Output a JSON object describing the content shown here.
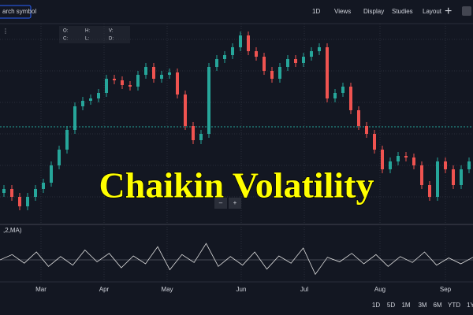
{
  "toolbar": {
    "search": "arch symbol",
    "items": [
      "1D",
      "Views",
      "Display",
      "Studies",
      "Layout"
    ]
  },
  "legend_labels": [
    "O:",
    "H:",
    "V:",
    "C:",
    "L:",
    "D:"
  ],
  "zoom_buttons": [
    "–",
    "+"
  ],
  "ranges": [
    "1D",
    "5D",
    "1M",
    "3M",
    "6M",
    "YTD",
    "1Y"
  ],
  "chart_data": [
    {
      "type": "candlestick",
      "title": "Chaikin Volatility",
      "up_color": "#26a69a",
      "down_color": "#ef5350",
      "price_line": 124,
      "open": [
        40,
        45,
        35,
        23,
        35,
        45,
        53,
        75,
        95,
        120,
        150,
        157,
        160,
        167,
        185,
        183,
        177,
        175,
        190,
        200,
        185,
        190,
        193,
        165,
        125,
        107,
        115,
        200,
        210,
        215,
        225,
        240,
        220,
        213,
        195,
        185,
        200,
        210,
        205,
        213,
        220,
        225,
        160,
        167,
        175,
        145,
        125,
        115,
        95,
        70,
        80,
        87,
        85,
        75,
        50,
        35,
        80,
        70,
        50,
        70
      ],
      "high": [
        50,
        50,
        40,
        40,
        50,
        58,
        80,
        100,
        125,
        155,
        162,
        165,
        172,
        190,
        190,
        188,
        182,
        195,
        205,
        205,
        195,
        198,
        198,
        170,
        130,
        120,
        205,
        215,
        220,
        230,
        245,
        245,
        225,
        218,
        200,
        205,
        215,
        215,
        218,
        225,
        230,
        230,
        172,
        180,
        180,
        150,
        130,
        120,
        100,
        85,
        92,
        92,
        90,
        80,
        55,
        85,
        85,
        75,
        75,
        85
      ],
      "low": [
        35,
        30,
        18,
        18,
        30,
        40,
        48,
        70,
        90,
        115,
        145,
        152,
        155,
        162,
        178,
        172,
        170,
        170,
        185,
        180,
        180,
        185,
        160,
        120,
        102,
        102,
        110,
        195,
        205,
        210,
        220,
        215,
        208,
        190,
        180,
        180,
        195,
        200,
        200,
        208,
        215,
        155,
        155,
        162,
        140,
        120,
        110,
        90,
        65,
        65,
        75,
        80,
        70,
        45,
        30,
        30,
        65,
        45,
        45,
        65
      ],
      "close": [
        45,
        35,
        23,
        35,
        45,
        53,
        75,
        95,
        120,
        150,
        157,
        160,
        167,
        185,
        183,
        177,
        175,
        190,
        200,
        185,
        190,
        193,
        165,
        125,
        107,
        115,
        200,
        210,
        215,
        225,
        240,
        220,
        213,
        195,
        185,
        200,
        210,
        205,
        213,
        220,
        225,
        160,
        167,
        175,
        145,
        125,
        115,
        95,
        70,
        80,
        87,
        85,
        75,
        50,
        35,
        80,
        70,
        50,
        70,
        80
      ],
      "ylim": [
        0,
        255
      ],
      "xlim": [
        -0.5,
        59.5
      ],
      "xticks": [
        {
          "value": 4.7,
          "label": "Mar"
        },
        {
          "value": 12.7,
          "label": "Apr"
        },
        {
          "value": 20.7,
          "label": "May"
        },
        {
          "value": 30.1,
          "label": "Jun"
        },
        {
          "value": 38.1,
          "label": "Jul"
        },
        {
          "value": 47.7,
          "label": "Aug"
        },
        {
          "value": 56,
          "label": "Sep"
        }
      ]
    },
    {
      "type": "line",
      "title": ",2,MA)",
      "color": "#e0e0e0",
      "ylim": [
        -30,
        30
      ],
      "values": [
        0,
        8,
        -5,
        12,
        -10,
        5,
        -8,
        15,
        -3,
        10,
        -12,
        6,
        -6,
        20,
        -15,
        8,
        -4,
        25,
        -10,
        5,
        -8,
        12,
        -14,
        6,
        -5,
        18,
        -22,
        4,
        -3,
        10,
        -6,
        8,
        -10,
        5,
        -4,
        12,
        -8,
        3,
        -6,
        4
      ]
    }
  ]
}
